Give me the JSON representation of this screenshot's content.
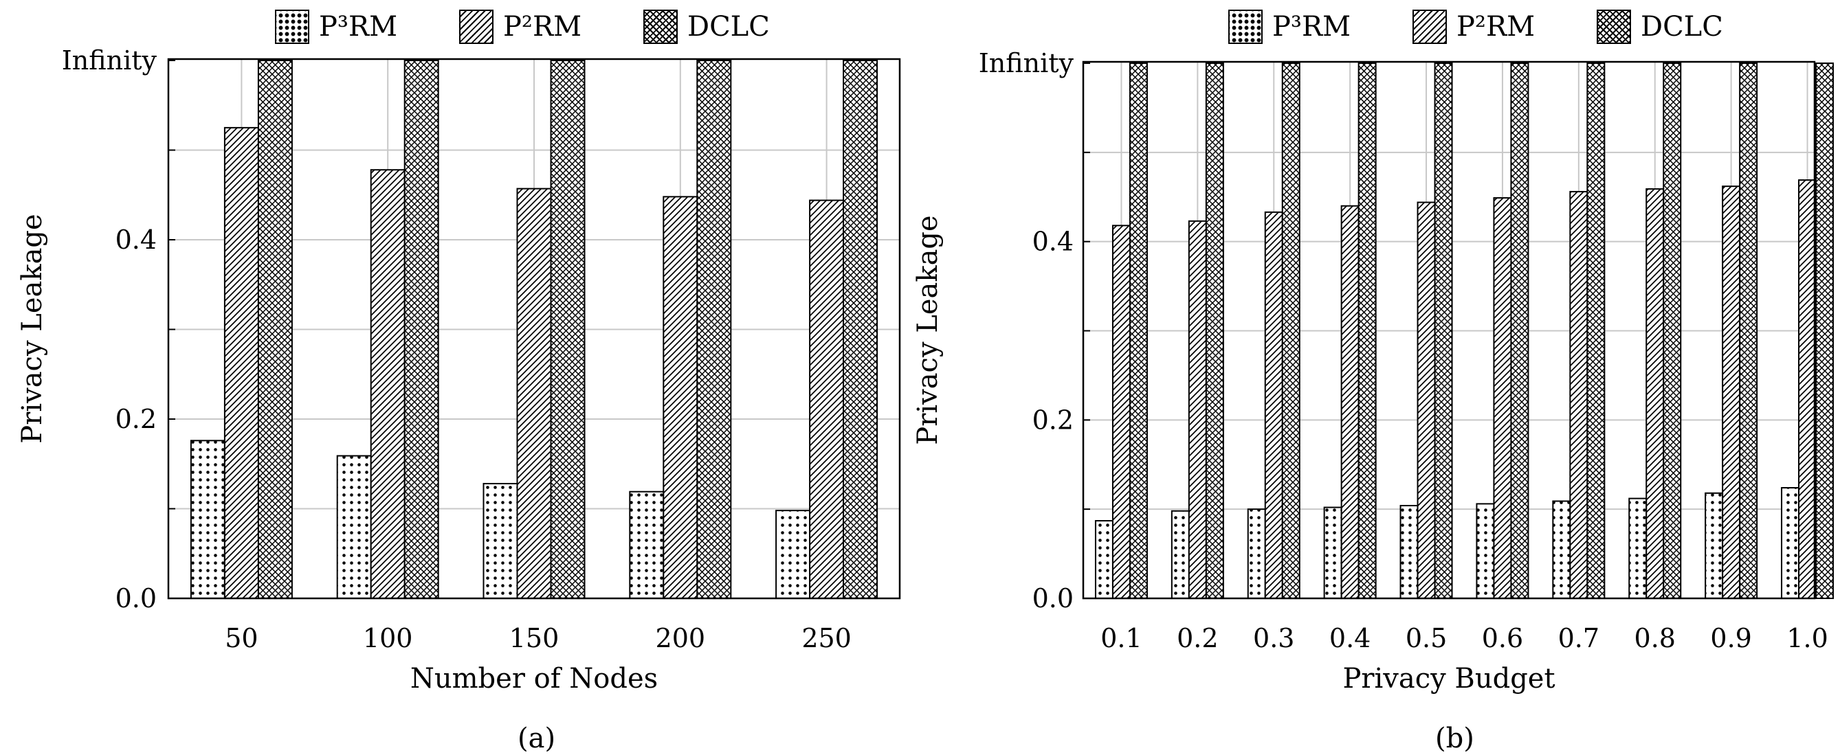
{
  "chart_data": [
    {
      "type": "bar",
      "caption": "(a)",
      "xlabel": "Number of Nodes",
      "ylabel": "Privacy Leakage",
      "categories": [
        "50",
        "100",
        "150",
        "200",
        "250"
      ],
      "ylim": [
        0,
        0.6
      ],
      "yticks": [
        {
          "value": 0.0,
          "label": "0.0"
        },
        {
          "value": 0.2,
          "label": "0.2"
        },
        {
          "value": 0.4,
          "label": "0.4"
        },
        {
          "value": 0.6,
          "label": "Infinity"
        }
      ],
      "infinity_label": "Infinity",
      "grid": true,
      "legend_position": "top-center",
      "series": [
        {
          "name": "P³RM",
          "pattern": "dots",
          "values": [
            0.176,
            0.159,
            0.128,
            0.119,
            0.098
          ]
        },
        {
          "name": "P²RM",
          "pattern": "diag",
          "values": [
            0.525,
            0.478,
            0.457,
            0.448,
            0.444
          ]
        },
        {
          "name": "DCLC",
          "pattern": "cross",
          "values": [
            "Infinity",
            "Infinity",
            "Infinity",
            "Infinity",
            "Infinity"
          ]
        }
      ]
    },
    {
      "type": "bar",
      "caption": "(b)",
      "xlabel": "Privacy Budget",
      "ylabel": "Privacy Leakage",
      "categories": [
        "0.1",
        "0.2",
        "0.3",
        "0.4",
        "0.5",
        "0.6",
        "0.7",
        "0.8",
        "0.9",
        "1.0"
      ],
      "ylim": [
        0,
        0.6
      ],
      "yticks": [
        {
          "value": 0.0,
          "label": "0.0"
        },
        {
          "value": 0.2,
          "label": "0.2"
        },
        {
          "value": 0.4,
          "label": "0.4"
        },
        {
          "value": 0.6,
          "label": "Infinity"
        }
      ],
      "infinity_label": "Infinity",
      "grid": true,
      "legend_position": "top-center",
      "series": [
        {
          "name": "P³RM",
          "pattern": "dots",
          "values": [
            0.087,
            0.098,
            0.1,
            0.102,
            0.104,
            0.106,
            0.109,
            0.112,
            0.118,
            0.124
          ]
        },
        {
          "name": "P²RM",
          "pattern": "diag",
          "values": [
            0.418,
            0.423,
            0.433,
            0.44,
            0.444,
            0.449,
            0.456,
            0.459,
            0.462,
            0.469
          ]
        },
        {
          "name": "DCLC",
          "pattern": "cross",
          "values": [
            "Infinity",
            "Infinity",
            "Infinity",
            "Infinity",
            "Infinity",
            "Infinity",
            "Infinity",
            "Infinity",
            "Infinity",
            "Infinity"
          ]
        }
      ]
    }
  ]
}
